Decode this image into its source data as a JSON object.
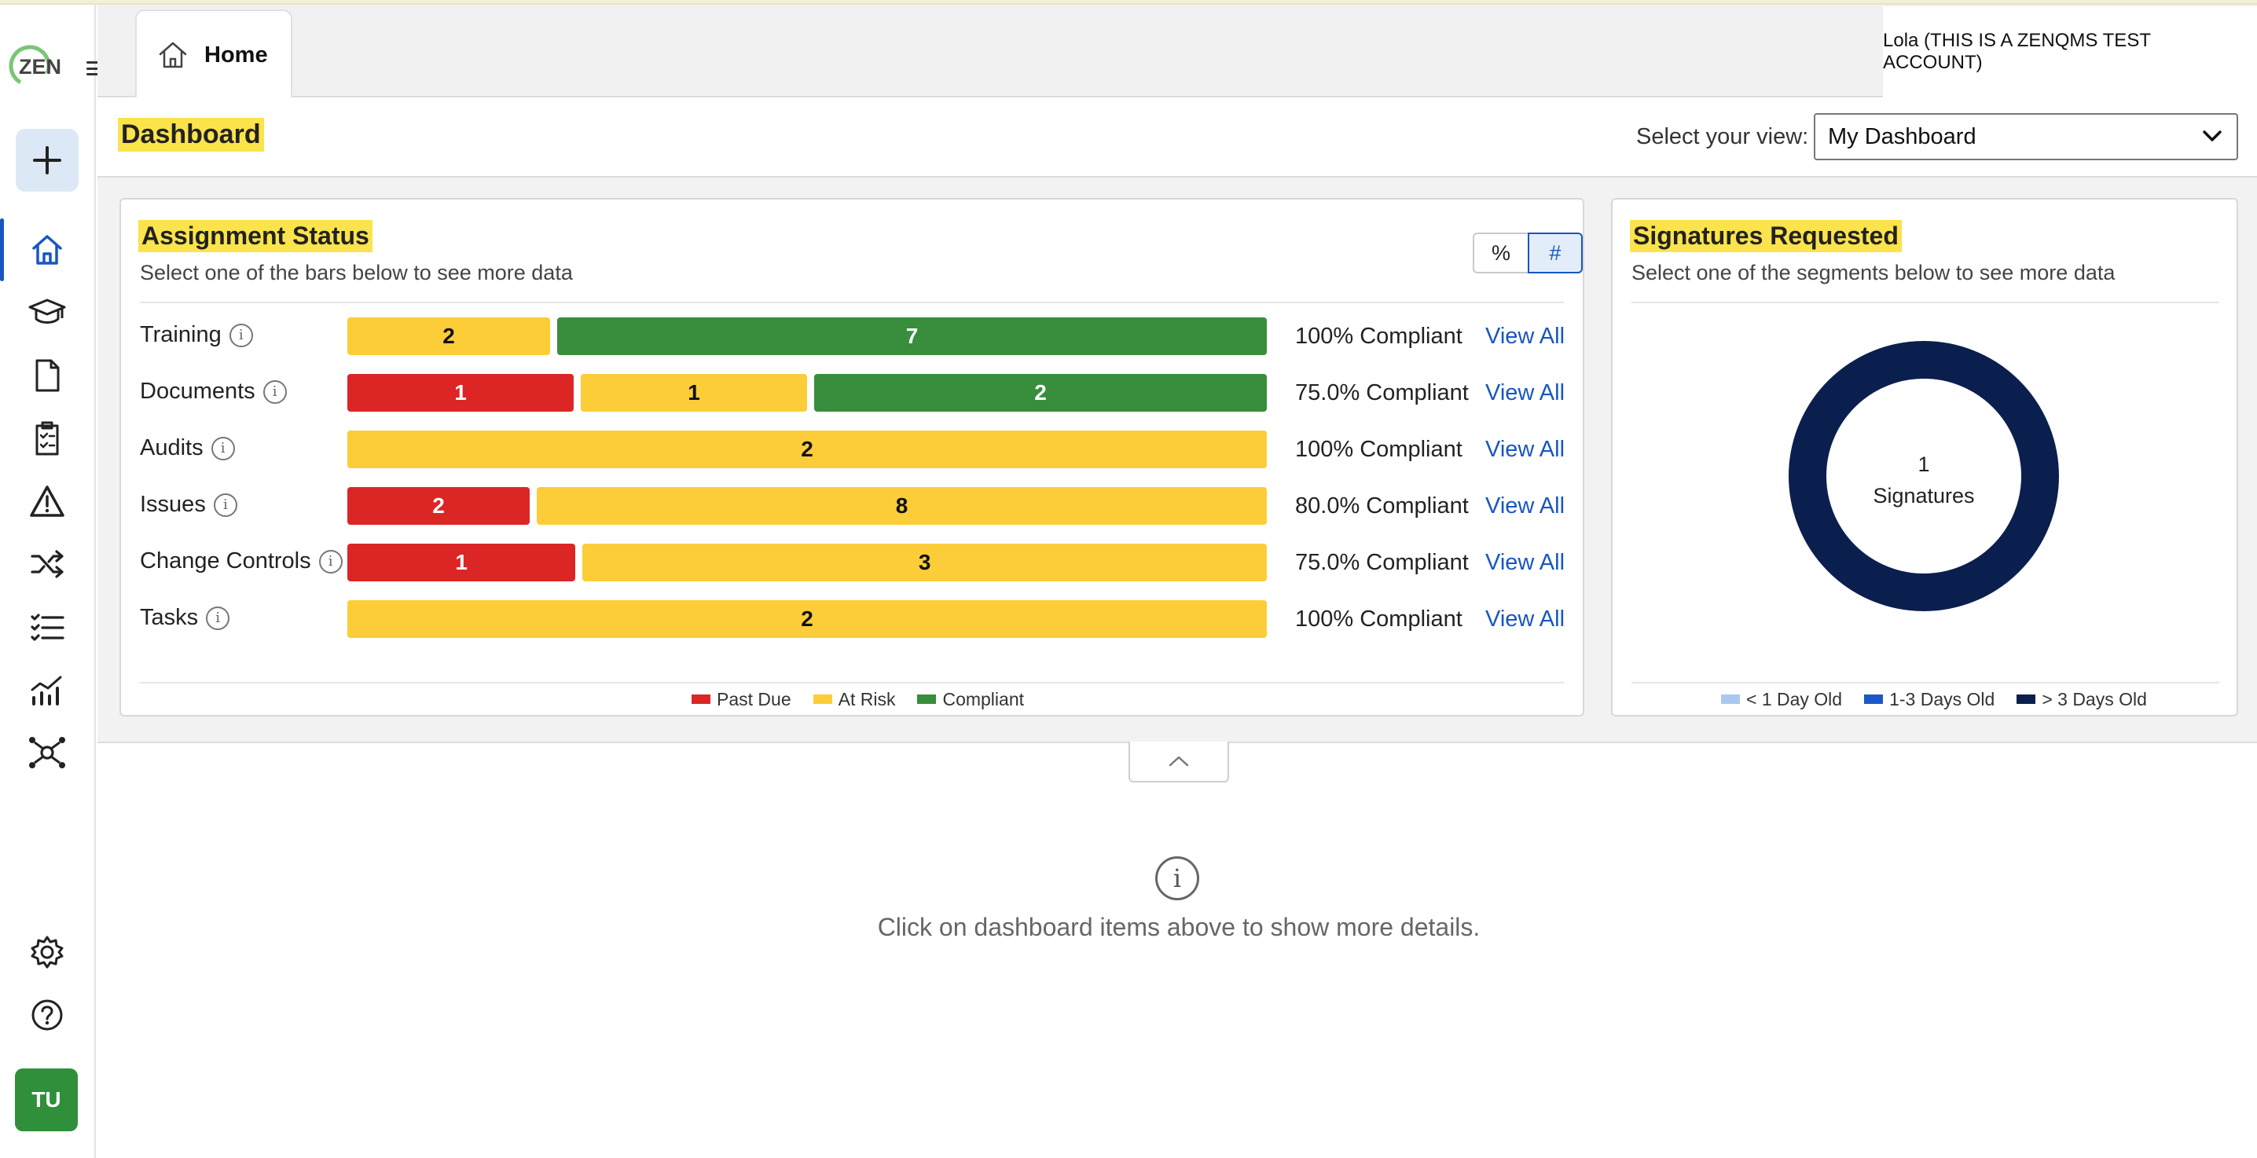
{
  "app": {
    "logo_text": "ZEN"
  },
  "tabs": {
    "home_label": "Home"
  },
  "user": {
    "display": "Lola (THIS IS A ZENQMS TEST ACCOUNT)",
    "avatar_initials": "TU"
  },
  "dashboard": {
    "title": "Dashboard",
    "view_label": "Select your view:",
    "view_value": "My Dashboard"
  },
  "assignment": {
    "title": "Assignment Status",
    "subtitle": "Select one of the bars below to see more data",
    "toggle_percent": "%",
    "toggle_count": "#",
    "toggle_selected": "#",
    "rows": [
      {
        "label": "Training",
        "segments": [
          {
            "status": "at_risk",
            "value": 2
          },
          {
            "status": "compliant",
            "value": 7
          }
        ],
        "compliance": "100% Compliant",
        "link": "View All"
      },
      {
        "label": "Documents",
        "segments": [
          {
            "status": "past_due",
            "value": 1
          },
          {
            "status": "at_risk",
            "value": 1
          },
          {
            "status": "compliant",
            "value": 2
          }
        ],
        "compliance": "75.0% Compliant",
        "link": "View All"
      },
      {
        "label": "Audits",
        "segments": [
          {
            "status": "at_risk",
            "value": 2
          }
        ],
        "compliance": "100% Compliant",
        "link": "View All"
      },
      {
        "label": "Issues",
        "segments": [
          {
            "status": "past_due",
            "value": 2
          },
          {
            "status": "at_risk",
            "value": 8
          }
        ],
        "compliance": "80.0% Compliant",
        "link": "View All"
      },
      {
        "label": "Change Controls",
        "segments": [
          {
            "status": "past_due",
            "value": 1
          },
          {
            "status": "at_risk",
            "value": 3
          }
        ],
        "compliance": "75.0% Compliant",
        "link": "View All"
      },
      {
        "label": "Tasks",
        "segments": [
          {
            "status": "at_risk",
            "value": 2
          }
        ],
        "compliance": "100% Compliant",
        "link": "View All"
      }
    ],
    "legend": {
      "past_due": "Past Due",
      "at_risk": "At Risk",
      "compliant": "Compliant"
    }
  },
  "signatures": {
    "title": "Signatures Requested",
    "subtitle": "Select one of the segments below to see more data",
    "center_count": "1",
    "center_label": "Signatures",
    "segments": [
      {
        "name": "> 3 Days Old",
        "value": 1
      }
    ],
    "legend": [
      "< 1 Day Old",
      "1-3 Days Old",
      "> 3 Days Old"
    ]
  },
  "details": {
    "empty_message": "Click on dashboard items above to show more details."
  },
  "colors": {
    "past_due": "#dc2626",
    "at_risk": "#fccd38",
    "compliant": "#388e3c",
    "sig_lt1": "#a9c8ef",
    "sig_1to3": "#1a58c8",
    "sig_gt3": "#0b1f4f",
    "accent": "#1856c2",
    "highlight": "#fbe34b"
  },
  "icons": {
    "sidebar": [
      "home-icon",
      "graduation-cap-icon",
      "document-icon",
      "clipboard-checklist-icon",
      "warning-icon",
      "shuffle-icon",
      "checklist-icon",
      "analytics-icon",
      "network-icon",
      "settings-icon",
      "help-icon"
    ]
  }
}
